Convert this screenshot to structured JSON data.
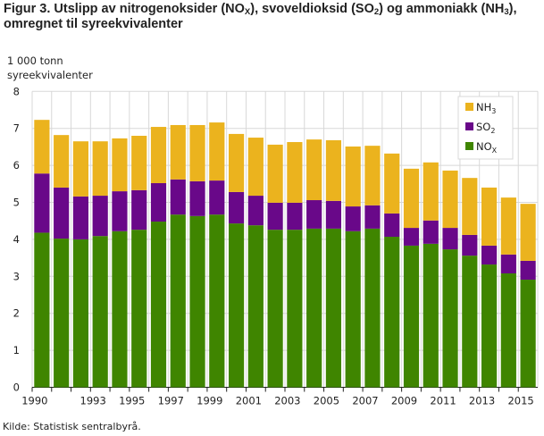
{
  "chart_data": {
    "type": "bar",
    "stacked": true,
    "title": "Figur 3. Utslipp av nitrogenoksider (NOX), svoveldioksid (SO2) og ammoniakk (NH3), omregnet til syreekvivalenter",
    "title_parts": [
      "Figur 3. Utslipp av nitrogenoksider (NO",
      "X",
      "), svoveldioksid (SO",
      "2",
      ") og ammoniakk (NH",
      "3",
      "),",
      "omregnet til syreekvivalenter"
    ],
    "ylabel_lines": [
      "1 000 tonn",
      "syreekvivalenter"
    ],
    "ylim": [
      0,
      8
    ],
    "yticks": [
      0,
      1,
      2,
      3,
      4,
      5,
      6,
      7,
      8
    ],
    "grid": true,
    "legend": "top-right",
    "categories": [
      1990,
      1991,
      1992,
      1993,
      1994,
      1995,
      1996,
      1997,
      1998,
      1999,
      2000,
      2001,
      2002,
      2003,
      2004,
      2005,
      2006,
      2007,
      2008,
      2009,
      2010,
      2011,
      2012,
      2013,
      2014,
      2015
    ],
    "xtick_labels": [
      "1990",
      "",
      "",
      "1993",
      "",
      "1995",
      "",
      "1997",
      "",
      "1999",
      "",
      "2001",
      "",
      "2003",
      "",
      "2005",
      "",
      "2007",
      "",
      "2009",
      "",
      "2011",
      "",
      "2013",
      "",
      "2015"
    ],
    "series": [
      {
        "name": "NOX",
        "label": "NO",
        "sub": "X",
        "color": "#3f8500",
        "values": [
          4.18,
          4.02,
          4.0,
          4.09,
          4.22,
          4.26,
          4.48,
          4.67,
          4.63,
          4.67,
          4.43,
          4.38,
          4.26,
          4.26,
          4.29,
          4.29,
          4.22,
          4.29,
          4.07,
          3.83,
          3.88,
          3.73,
          3.56,
          3.32,
          3.08,
          2.91
        ]
      },
      {
        "name": "SO2",
        "label": "SO",
        "sub": "2",
        "color": "#690889",
        "values": [
          1.6,
          1.38,
          1.16,
          1.09,
          1.08,
          1.07,
          1.04,
          0.95,
          0.94,
          0.92,
          0.85,
          0.8,
          0.73,
          0.73,
          0.77,
          0.75,
          0.67,
          0.63,
          0.63,
          0.48,
          0.63,
          0.58,
          0.56,
          0.51,
          0.51,
          0.51
        ]
      },
      {
        "name": "NH3",
        "label": "NH",
        "sub": "3",
        "color": "#ebb31e",
        "values": [
          1.45,
          1.42,
          1.49,
          1.47,
          1.43,
          1.47,
          1.52,
          1.47,
          1.52,
          1.57,
          1.57,
          1.57,
          1.57,
          1.64,
          1.64,
          1.64,
          1.62,
          1.61,
          1.62,
          1.6,
          1.57,
          1.55,
          1.54,
          1.57,
          1.54,
          1.54
        ]
      }
    ],
    "source": "Kilde: Statistisk sentralbyrå."
  }
}
